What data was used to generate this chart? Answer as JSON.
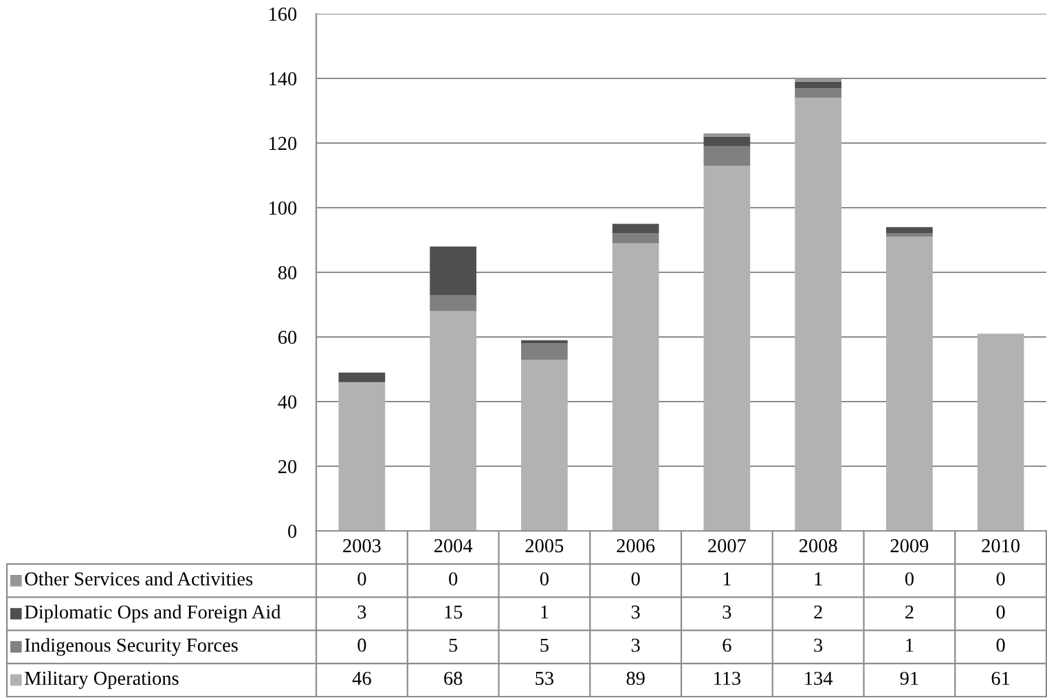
{
  "chart_data": {
    "type": "bar",
    "stacked": true,
    "categories": [
      "2003",
      "2004",
      "2005",
      "2006",
      "2007",
      "2008",
      "2009",
      "2010"
    ],
    "series": [
      {
        "name": "Military Operations",
        "color": "#b2b2b2",
        "values": [
          46,
          68,
          53,
          89,
          113,
          134,
          91,
          61
        ]
      },
      {
        "name": "Indigenous Security Forces",
        "color": "#808080",
        "values": [
          0,
          5,
          5,
          3,
          6,
          3,
          1,
          0
        ]
      },
      {
        "name": "Diplomatic Ops and Foreign Aid",
        "color": "#4f4f4f",
        "values": [
          3,
          15,
          1,
          3,
          3,
          2,
          2,
          0
        ]
      },
      {
        "name": "Other Services and Activities",
        "color": "#969696",
        "values": [
          0,
          0,
          0,
          0,
          1,
          1,
          0,
          0
        ]
      }
    ],
    "ylim": [
      0,
      160
    ],
    "yticks": [
      0,
      20,
      40,
      60,
      80,
      100,
      120,
      140,
      160
    ],
    "grid": "y",
    "data_labels": true,
    "legend": "bottom"
  }
}
